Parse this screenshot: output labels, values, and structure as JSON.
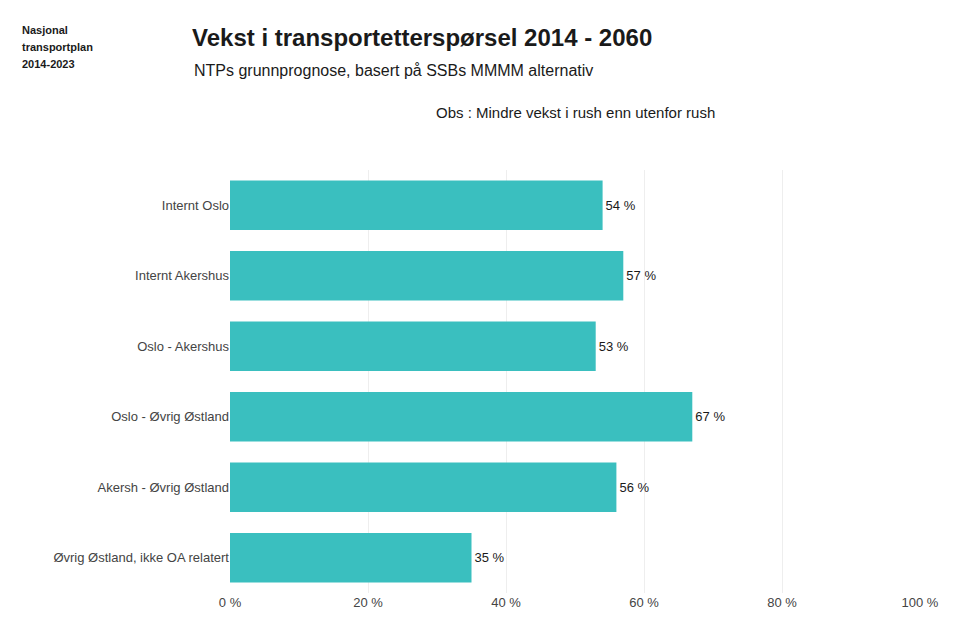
{
  "chart_data": {
    "type": "bar",
    "orientation": "horizontal",
    "title": "Vekst i transportetterspørsel 2014 - 2060",
    "subtitle": "NTPs grunnprognose, basert på SSBs MMMM alternativ",
    "annotations": [
      "Obs : Mindre vekst i rush enn utenfor rush",
      "Nasjonal",
      "transportplan",
      "2014-2023"
    ],
    "categories": [
      "Internt Oslo",
      "Internt Akershus",
      "Oslo - Akershus",
      "Oslo - Øvrig Østland",
      "Akersh - Øvrig Østland",
      "Øvrig Østland, ikke OA relatert"
    ],
    "values": [
      54,
      57,
      53,
      67,
      56,
      35
    ],
    "value_labels": [
      "54 %",
      "57 %",
      "53 %",
      "67 %",
      "56 %",
      "35 %"
    ],
    "data_labels": true,
    "color": "#3abfbf",
    "xlim": [
      0,
      100
    ],
    "xticks": [
      {
        "value": 0,
        "label": "0 %"
      },
      {
        "value": 20,
        "label": "20 %"
      },
      {
        "value": 40,
        "label": "40 %"
      },
      {
        "value": 60,
        "label": "60 %"
      },
      {
        "value": 80,
        "label": "80 %"
      },
      {
        "value": 100,
        "label": "100 %"
      }
    ],
    "grid": true
  }
}
